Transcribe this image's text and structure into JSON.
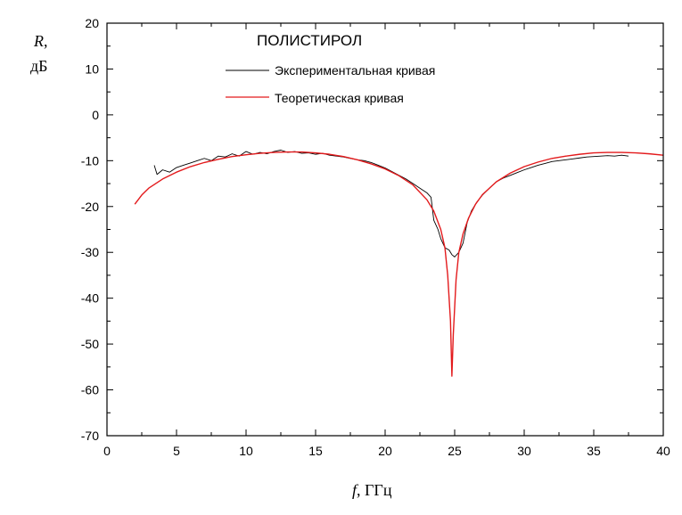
{
  "chart_data": {
    "type": "line",
    "title": "ПОЛИСТИРОЛ",
    "ylabel_var": "R",
    "ylabel_sep": ",",
    "ylabel_unit": "дБ",
    "xlabel_var": "f",
    "xlabel_unit": ", ГГц",
    "xlim": [
      0,
      40
    ],
    "ylim": [
      -70,
      20
    ],
    "xticks": [
      0,
      5,
      10,
      15,
      20,
      25,
      30,
      35,
      40
    ],
    "yticks": [
      20,
      10,
      0,
      -10,
      -20,
      -30,
      -40,
      -50,
      -60,
      -70
    ],
    "legend_position": "top-center",
    "grid": false,
    "series": [
      {
        "name": "Экспериментальная кривая",
        "color": "#000000",
        "x": [
          3.4,
          3.6,
          4.0,
          4.5,
          5.0,
          5.5,
          6.0,
          6.5,
          7.0,
          7.5,
          8.0,
          8.5,
          9.0,
          9.5,
          10.0,
          10.5,
          11.0,
          11.5,
          12.0,
          12.5,
          13.0,
          13.5,
          14.0,
          14.5,
          15.0,
          15.5,
          16.0,
          16.5,
          17.0,
          17.5,
          18.0,
          18.5,
          19.0,
          19.5,
          20.0,
          20.5,
          21.0,
          21.5,
          22.0,
          22.5,
          23.0,
          23.3,
          23.5,
          23.8,
          24.0,
          24.3,
          24.6,
          24.8,
          25.0,
          25.3,
          25.6,
          25.9,
          26.2,
          26.6,
          27.0,
          27.5,
          28.0,
          28.5,
          29.0,
          29.5,
          30.0,
          30.5,
          31.0,
          31.5,
          32.0,
          32.5,
          33.0,
          33.5,
          34.0,
          34.5,
          35.0,
          35.5,
          36.0,
          36.5,
          37.0,
          37.5
        ],
        "y": [
          -11.0,
          -13.0,
          -12.0,
          -12.5,
          -11.5,
          -11.0,
          -10.5,
          -10.0,
          -9.5,
          -10.0,
          -9.0,
          -9.2,
          -8.5,
          -9.0,
          -8.0,
          -8.6,
          -8.2,
          -8.5,
          -8.0,
          -7.7,
          -8.2,
          -8.0,
          -8.4,
          -8.3,
          -8.6,
          -8.4,
          -8.8,
          -9.0,
          -9.2,
          -9.5,
          -9.8,
          -10.0,
          -10.4,
          -11.0,
          -11.6,
          -12.4,
          -13.2,
          -14.0,
          -15.0,
          -16.0,
          -17.0,
          -18.0,
          -23.0,
          -25.0,
          -27.0,
          -29.0,
          -29.5,
          -30.5,
          -31.0,
          -30.0,
          -28.0,
          -23.5,
          -21.0,
          -19.0,
          -17.5,
          -16.0,
          -14.6,
          -13.8,
          -13.2,
          -12.6,
          -12.0,
          -11.5,
          -11.0,
          -10.6,
          -10.2,
          -10.0,
          -9.8,
          -9.6,
          -9.4,
          -9.2,
          -9.1,
          -9.0,
          -8.9,
          -9.0,
          -8.8,
          -9.0
        ]
      },
      {
        "name": "Теоретическая кривая",
        "color": "#e31a1c",
        "x": [
          2.0,
          2.5,
          3.0,
          3.5,
          4.0,
          5.0,
          6.0,
          7.0,
          8.0,
          9.0,
          10.0,
          11.0,
          12.0,
          13.0,
          14.0,
          15.0,
          16.0,
          17.0,
          18.0,
          19.0,
          20.0,
          21.0,
          22.0,
          23.0,
          23.5,
          24.0,
          24.3,
          24.5,
          24.7,
          24.8,
          24.9,
          25.1,
          25.3,
          25.6,
          26.0,
          26.5,
          27.0,
          28.0,
          29.0,
          30.0,
          31.0,
          32.0,
          33.0,
          34.0,
          35.0,
          36.0,
          37.0,
          38.0,
          39.0,
          40.0
        ],
        "y": [
          -19.5,
          -17.5,
          -16.0,
          -15.0,
          -14.0,
          -12.5,
          -11.3,
          -10.4,
          -9.7,
          -9.1,
          -8.7,
          -8.4,
          -8.2,
          -8.1,
          -8.1,
          -8.3,
          -8.6,
          -9.1,
          -9.8,
          -10.7,
          -11.8,
          -13.3,
          -15.3,
          -18.5,
          -21.0,
          -25.0,
          -29.0,
          -35.0,
          -45.0,
          -57.0,
          -48.0,
          -36.0,
          -30.0,
          -26.0,
          -22.5,
          -19.5,
          -17.4,
          -14.6,
          -12.7,
          -11.3,
          -10.3,
          -9.5,
          -9.0,
          -8.6,
          -8.3,
          -8.2,
          -8.2,
          -8.3,
          -8.5,
          -8.8
        ]
      }
    ]
  }
}
